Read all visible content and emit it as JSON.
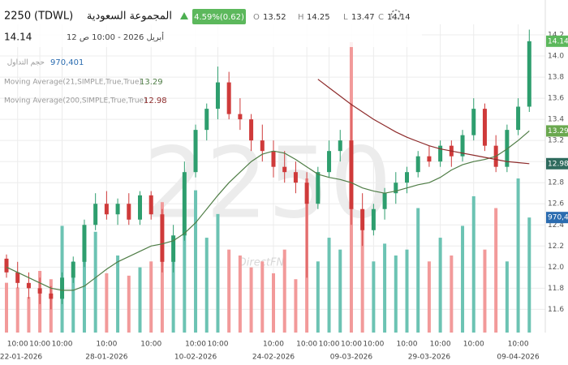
{
  "header": {
    "symbol": "2250",
    "exchange": "(TDWL)",
    "name": "المجموعة السعودية",
    "change": "4.59%(0.62)",
    "open_label": "O",
    "open": 13.52,
    "high_label": "H",
    "high": 14.25,
    "low_label": "L",
    "low": 13.47,
    "close_label": "C",
    "close": 14.14,
    "last_price": 14.14,
    "datetime": "أبريل 2026 - 10:00 ص 12"
  },
  "legend": {
    "volume_name": "حجم التداول",
    "volume": {
      "value": 970401,
      "label": "970,401"
    },
    "ma21_name": "Moving Average(21,SIMPLE,True,True)",
    "ma21": 13.29,
    "ma200_name": "Moving Average(200,SIMPLE,True,True)",
    "ma200": 12.98
  },
  "watermark": "2250",
  "brand": "DirectFN",
  "chart_data": {
    "type": "candlestick",
    "categories": [
      null,
      "10:00",
      null,
      "10:00",
      null,
      "10:00",
      null,
      null,
      null,
      "10:00",
      null,
      null,
      null,
      "10:00",
      null,
      null,
      null,
      "10:00",
      null,
      "10:00",
      null,
      null,
      null,
      null,
      "10:00",
      null,
      null,
      "10:00",
      null,
      "10:00",
      null,
      "10:00",
      null,
      "10:00",
      null,
      null,
      "10:00",
      null,
      null,
      "10:00",
      null,
      null,
      "10:00",
      null,
      null,
      null,
      "10:00",
      null
    ],
    "date_labels": [
      null,
      "22-01-2026",
      null,
      null,
      null,
      null,
      null,
      null,
      null,
      "28-01-2026",
      null,
      null,
      null,
      null,
      null,
      null,
      null,
      "10-02-2026",
      null,
      null,
      null,
      null,
      null,
      null,
      "24-02-2026",
      null,
      null,
      null,
      null,
      null,
      null,
      "09-03-2026",
      null,
      null,
      null,
      null,
      null,
      null,
      "29-03-2026",
      null,
      null,
      null,
      null,
      null,
      null,
      null,
      "09-04-2026",
      null
    ],
    "open": [
      12.08,
      11.95,
      11.85,
      11.8,
      11.75,
      11.7,
      11.9,
      12.05,
      12.4,
      12.6,
      12.5,
      12.6,
      12.45,
      12.68,
      12.5,
      12.05,
      12.3,
      12.9,
      13.3,
      13.5,
      13.75,
      13.45,
      13.4,
      13.2,
      13.1,
      12.95,
      12.9,
      12.8,
      12.6,
      12.9,
      13.1,
      13.2,
      12.55,
      12.35,
      12.55,
      12.7,
      12.8,
      12.9,
      13.05,
      13.0,
      13.15,
      13.05,
      13.25,
      13.5,
      13.15,
      12.95,
      13.3,
      13.52
    ],
    "high": [
      12.12,
      12.05,
      11.95,
      11.9,
      11.82,
      11.95,
      12.1,
      12.45,
      12.7,
      12.72,
      12.65,
      12.7,
      12.72,
      12.72,
      12.55,
      12.4,
      13.0,
      13.35,
      13.55,
      13.9,
      13.85,
      13.6,
      13.45,
      13.35,
      13.2,
      13.1,
      13.0,
      12.9,
      12.95,
      13.2,
      13.3,
      13.55,
      12.7,
      12.6,
      12.75,
      12.9,
      12.95,
      13.1,
      13.15,
      13.2,
      13.2,
      13.3,
      13.6,
      13.55,
      13.25,
      13.35,
      13.6,
      14.25
    ],
    "low": [
      11.9,
      11.8,
      11.7,
      11.65,
      11.6,
      11.65,
      11.85,
      12.0,
      12.35,
      12.45,
      12.4,
      12.4,
      12.4,
      12.45,
      11.95,
      11.95,
      12.25,
      12.85,
      13.2,
      13.4,
      13.4,
      13.3,
      13.1,
      13.0,
      12.85,
      12.8,
      12.7,
      11.9,
      12.55,
      12.85,
      13.0,
      12.4,
      12.2,
      12.3,
      12.45,
      12.6,
      12.7,
      12.85,
      12.95,
      12.95,
      12.95,
      13.0,
      13.2,
      13.1,
      12.9,
      12.9,
      13.25,
      13.47
    ],
    "close": [
      11.95,
      11.85,
      11.8,
      11.75,
      11.7,
      11.9,
      12.05,
      12.4,
      12.6,
      12.5,
      12.6,
      12.45,
      12.68,
      12.5,
      12.05,
      12.3,
      12.9,
      13.3,
      13.5,
      13.75,
      13.45,
      13.4,
      13.2,
      13.1,
      12.95,
      12.9,
      12.8,
      12.6,
      12.9,
      13.1,
      13.2,
      12.55,
      12.35,
      12.55,
      12.7,
      12.8,
      12.9,
      13.05,
      13.0,
      13.15,
      13.05,
      13.25,
      13.5,
      13.15,
      12.95,
      13.3,
      13.52,
      14.14
    ],
    "volume": [
      420000,
      380000,
      300000,
      520000,
      450000,
      900000,
      600000,
      700000,
      850000,
      500000,
      650000,
      480000,
      550000,
      600000,
      1100000,
      750000,
      900000,
      1200000,
      800000,
      1000000,
      700000,
      650000,
      550000,
      600000,
      500000,
      700000,
      450000,
      1300000,
      600000,
      800000,
      700000,
      2450000,
      900000,
      600000,
      750000,
      650000,
      700000,
      1050000,
      600000,
      800000,
      650000,
      900000,
      1150000,
      700000,
      1050000,
      600000,
      1300000,
      970401
    ],
    "up_color": "#2e9e6e",
    "down_color": "#cf3a3a",
    "volume_up_color": "#6cc3b3",
    "volume_down_color": "#f29a9a",
    "series": [
      {
        "name": "Moving Average(21,SIMPLE,True,True)",
        "color": "#4f7d46",
        "values": [
          12.0,
          11.95,
          11.9,
          11.85,
          11.8,
          11.78,
          11.78,
          11.82,
          11.9,
          11.98,
          12.05,
          12.1,
          12.15,
          12.2,
          12.22,
          12.25,
          12.32,
          12.42,
          12.55,
          12.68,
          12.8,
          12.9,
          13.0,
          13.07,
          13.1,
          13.08,
          13.02,
          12.95,
          12.88,
          12.85,
          12.83,
          12.8,
          12.75,
          12.72,
          12.7,
          12.72,
          12.75,
          12.78,
          12.8,
          12.85,
          12.92,
          12.97,
          13.0,
          13.02,
          13.05,
          13.12,
          13.2,
          13.29
        ]
      },
      {
        "name": "Moving Average(200,SIMPLE,True,True)",
        "color": "#8e2b2b",
        "values": [
          null,
          null,
          null,
          null,
          null,
          null,
          null,
          null,
          null,
          null,
          null,
          null,
          null,
          null,
          null,
          null,
          null,
          null,
          null,
          null,
          null,
          null,
          null,
          null,
          null,
          null,
          null,
          null,
          13.78,
          13.7,
          13.62,
          13.54,
          13.47,
          13.4,
          13.34,
          13.28,
          13.23,
          13.19,
          13.15,
          13.12,
          13.1,
          13.08,
          13.06,
          13.04,
          13.02,
          13.0,
          12.99,
          12.98
        ]
      }
    ],
    "ylim": [
      11.38,
      14.3
    ],
    "volume_lim": [
      0,
      2600000
    ],
    "yticks": [
      11.6,
      11.8,
      {
        "value": 12,
        "label": "12.0"
      },
      12.2,
      12.4,
      12.6,
      12.8,
      {
        "value": 13,
        "label": "13.0"
      },
      13.2,
      13.4,
      13.6,
      13.8,
      {
        "value": 14,
        "label": "14.0"
      },
      14.2
    ],
    "grid": true
  }
}
